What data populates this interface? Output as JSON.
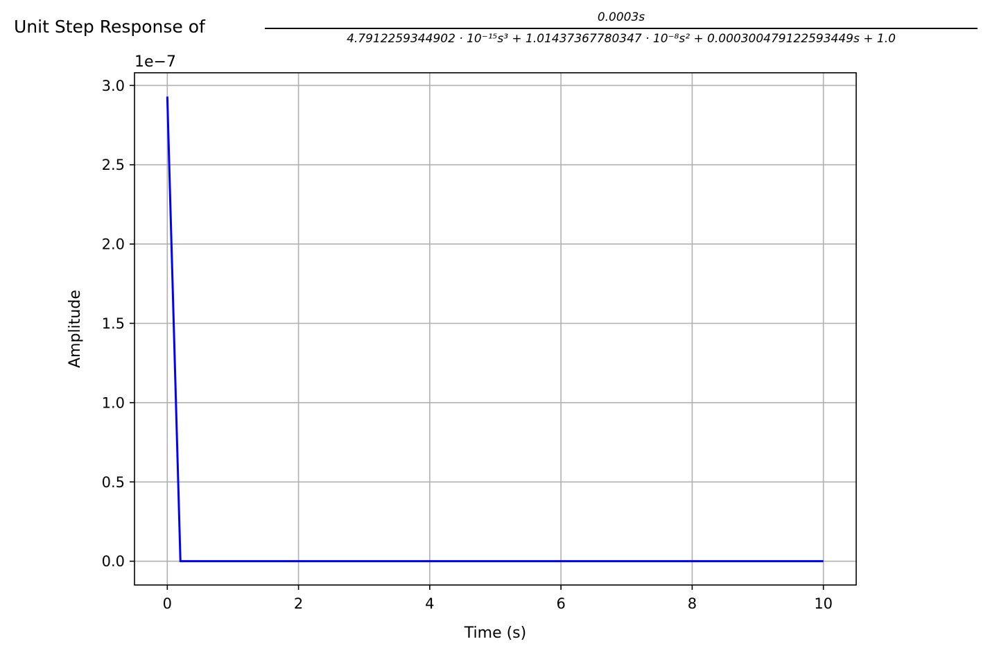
{
  "chart_data": {
    "type": "line",
    "title": {
      "prefix": "Unit Step Response of",
      "numerator": "0.0003s",
      "denominator": "4.7912259344902 · 10⁻¹⁵s³ + 1.01437367780347 · 10⁻⁸s² + 0.000300479122593449s + 1.0"
    },
    "xlabel": "Time (s)",
    "ylabel": "Amplitude",
    "y_offset_label": "1e−7",
    "xlim": [
      -0.5,
      10.5
    ],
    "ylim": [
      -0.15,
      3.08
    ],
    "y_scale_factor": 1e-07,
    "x_ticks": [
      0,
      2,
      4,
      6,
      8,
      10
    ],
    "x_tick_labels": [
      "0",
      "2",
      "4",
      "6",
      "8",
      "10"
    ],
    "y_ticks": [
      0.0,
      0.5,
      1.0,
      1.5,
      2.0,
      2.5,
      3.0
    ],
    "y_tick_labels": [
      "0.0",
      "0.5",
      "1.0",
      "1.5",
      "2.0",
      "2.5",
      "3.0"
    ],
    "grid": true,
    "series": [
      {
        "color": "#0000ff",
        "x": [
          0.0,
          0.2,
          10.0
        ],
        "y": [
          2.93,
          0.0,
          0.0
        ]
      }
    ]
  }
}
